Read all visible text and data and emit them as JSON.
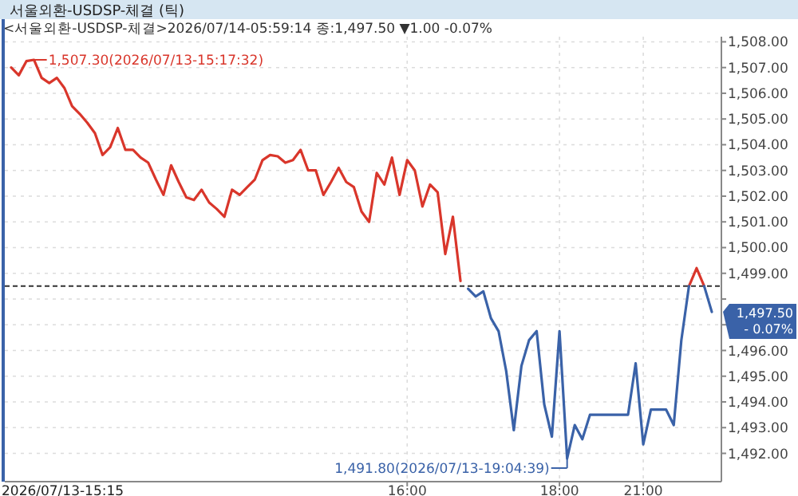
{
  "chart_data": {
    "type": "line",
    "title": "서울외환-USDSP-체결 (틱)",
    "subtitle": "<서울외환-USDSP-체결>2026/07/14-05:59:14 종:1,497.50 ▼1.00 -0.07%",
    "annotations": [
      "1,507.30(2026/07/13-15:17:32)",
      "1,491.80(2026/07/13-19:04:39)",
      "1,497.50 - 0.07%",
      "2026/07/13-15:15"
    ],
    "categories": [
      null,
      null,
      null,
      null,
      null,
      null,
      null,
      null,
      null,
      null,
      null,
      null,
      null,
      null,
      null,
      null,
      null,
      null,
      null,
      null,
      null,
      null,
      null,
      null,
      null,
      null,
      null,
      null,
      null,
      null,
      null,
      null,
      null,
      null,
      null,
      null,
      null,
      null,
      null,
      null,
      null,
      null,
      null,
      null,
      null,
      null,
      null,
      null,
      null,
      null,
      null,
      null,
      "16:00",
      null,
      null,
      null,
      null,
      null,
      null,
      null,
      null,
      null,
      null,
      null,
      null,
      null,
      null,
      null,
      null,
      null,
      null,
      null,
      "18:00",
      null,
      null,
      null,
      null,
      null,
      null,
      null,
      null,
      null,
      null,
      "21:00",
      null,
      null,
      null,
      null,
      null,
      null,
      null,
      null,
      null
    ],
    "series": [
      {
        "color": "#d9362b",
        "values": [
          1507.0,
          1506.7,
          1507.25,
          1507.3,
          1506.6,
          1506.4,
          1506.6,
          1506.2,
          1505.5,
          1505.2,
          1504.85,
          1504.45,
          1503.6,
          1503.9,
          1504.65,
          1503.8,
          1503.8,
          1503.5,
          1503.3,
          1502.65,
          1502.05,
          1503.2,
          1502.55,
          1501.95,
          1501.85,
          1502.25,
          1501.75,
          1501.5,
          1501.2,
          1502.25,
          1502.05,
          1502.35,
          1502.65,
          1503.4,
          1503.6,
          1503.55,
          1503.3,
          1503.4,
          1503.8,
          1503.0,
          1503.0,
          1502.05,
          1502.55,
          1503.1,
          1502.55,
          1502.35,
          1501.4,
          1501.0,
          1502.9,
          1502.45,
          1503.5,
          1502.05,
          1503.4,
          1503.0,
          1501.6,
          1502.45,
          1502.15,
          1499.75,
          1501.2,
          1498.7,
          null,
          null,
          null,
          null,
          null,
          null,
          null,
          null,
          null,
          null,
          null,
          null,
          null,
          null,
          null,
          null,
          null,
          null,
          null,
          null,
          null,
          null,
          null,
          null,
          null,
          null,
          null,
          null,
          null,
          1498.5,
          1499.2,
          1498.5,
          null
        ]
      },
      {
        "color": "#3a62a8",
        "values": [
          null,
          null,
          null,
          null,
          null,
          null,
          null,
          null,
          null,
          null,
          null,
          null,
          null,
          null,
          null,
          null,
          null,
          null,
          null,
          null,
          null,
          null,
          null,
          null,
          null,
          null,
          null,
          null,
          null,
          null,
          null,
          null,
          null,
          null,
          null,
          null,
          null,
          null,
          null,
          null,
          null,
          null,
          null,
          null,
          null,
          null,
          null,
          null,
          null,
          null,
          null,
          null,
          null,
          null,
          null,
          null,
          null,
          null,
          null,
          null,
          1498.4,
          1498.1,
          1498.3,
          1497.25,
          1496.75,
          1495.2,
          1492.9,
          1495.4,
          1496.4,
          1496.75,
          1493.9,
          1492.65,
          1496.75,
          1491.8,
          1493.1,
          1492.55,
          1493.5,
          1493.5,
          1493.5,
          1493.5,
          1493.5,
          1493.5,
          1495.5,
          1492.35,
          1493.7,
          1493.7,
          1493.7,
          1493.1,
          1496.4,
          1498.5,
          null,
          1498.5,
          1497.5
        ]
      }
    ],
    "ylim": [
      1490.9,
      1508.2
    ],
    "yticks": [
      {
        "value": 1492,
        "label": "1,492.00"
      },
      {
        "value": 1493,
        "label": "1,493.00"
      },
      {
        "value": 1494,
        "label": "1,494.00"
      },
      {
        "value": 1495,
        "label": "1,495.00"
      },
      {
        "value": 1496,
        "label": "1,496.00"
      },
      {
        "value": 1497,
        "label": null
      },
      {
        "value": 1498,
        "label": null
      },
      {
        "value": 1499,
        "label": "1,499.00"
      },
      {
        "value": 1500,
        "label": "1,500.00"
      },
      {
        "value": 1501,
        "label": "1,501.00"
      },
      {
        "value": 1502,
        "label": "1,502.00"
      },
      {
        "value": 1503,
        "label": "1,503.00"
      },
      {
        "value": 1504,
        "label": "1,504.00"
      },
      {
        "value": 1505,
        "label": "1,505.00"
      },
      {
        "value": 1506,
        "label": "1,506.00"
      },
      {
        "value": 1507,
        "label": "1,507.00"
      },
      {
        "value": 1508,
        "label": "1,508.00"
      }
    ],
    "ref_lines": [
      {
        "axis": "y",
        "value": 1498.5,
        "color": "#333333",
        "line_style": "dashed"
      }
    ],
    "grid": true
  }
}
